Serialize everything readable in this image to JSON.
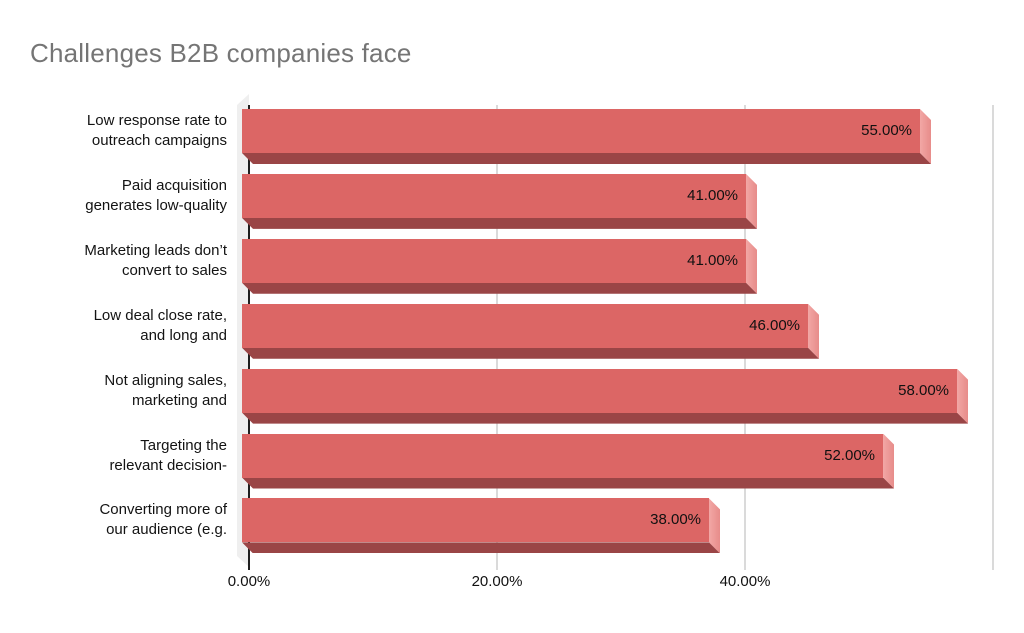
{
  "chart_data": {
    "type": "bar",
    "orientation": "horizontal",
    "style": "3d",
    "title": "Challenges B2B companies face",
    "categories": [
      [
        "Low response rate to",
        "outreach campaigns"
      ],
      [
        "Paid acquisition",
        "generates low-quality"
      ],
      [
        "Marketing leads don’t",
        "convert to sales"
      ],
      [
        "Low deal close rate,",
        "and long and"
      ],
      [
        "Not aligning sales,",
        "marketing and"
      ],
      [
        "Targeting the",
        "relevant decision-"
      ],
      [
        "Converting more of",
        "our audience (e.g."
      ]
    ],
    "values": [
      55,
      41,
      41,
      46,
      58,
      52,
      38
    ],
    "data_labels": [
      "55.00%",
      "41.00%",
      "41.00%",
      "46.00%",
      "58.00%",
      "52.00%",
      "38.00%"
    ],
    "x_axis": {
      "tick_labels": [
        "0.00%",
        "20.00%",
        "40.00%"
      ],
      "tick_values": [
        0,
        20,
        40
      ],
      "gridline_values": [
        20,
        40,
        60
      ],
      "range": [
        0,
        61
      ]
    },
    "ylabel": "",
    "xlabel": "",
    "legend": "none",
    "grid": "vertical",
    "colors": {
      "bar_front": "#dc6665",
      "bar_side_light": "#f2a7a5",
      "bar_side": "#e78c8a",
      "bar_bottom": "#9a4546",
      "wall": "#efefef",
      "gridline": "#dadada",
      "axis_line": "#1f1f1f",
      "title": "#757575",
      "label": "#131313",
      "background": "#ffffff"
    }
  }
}
